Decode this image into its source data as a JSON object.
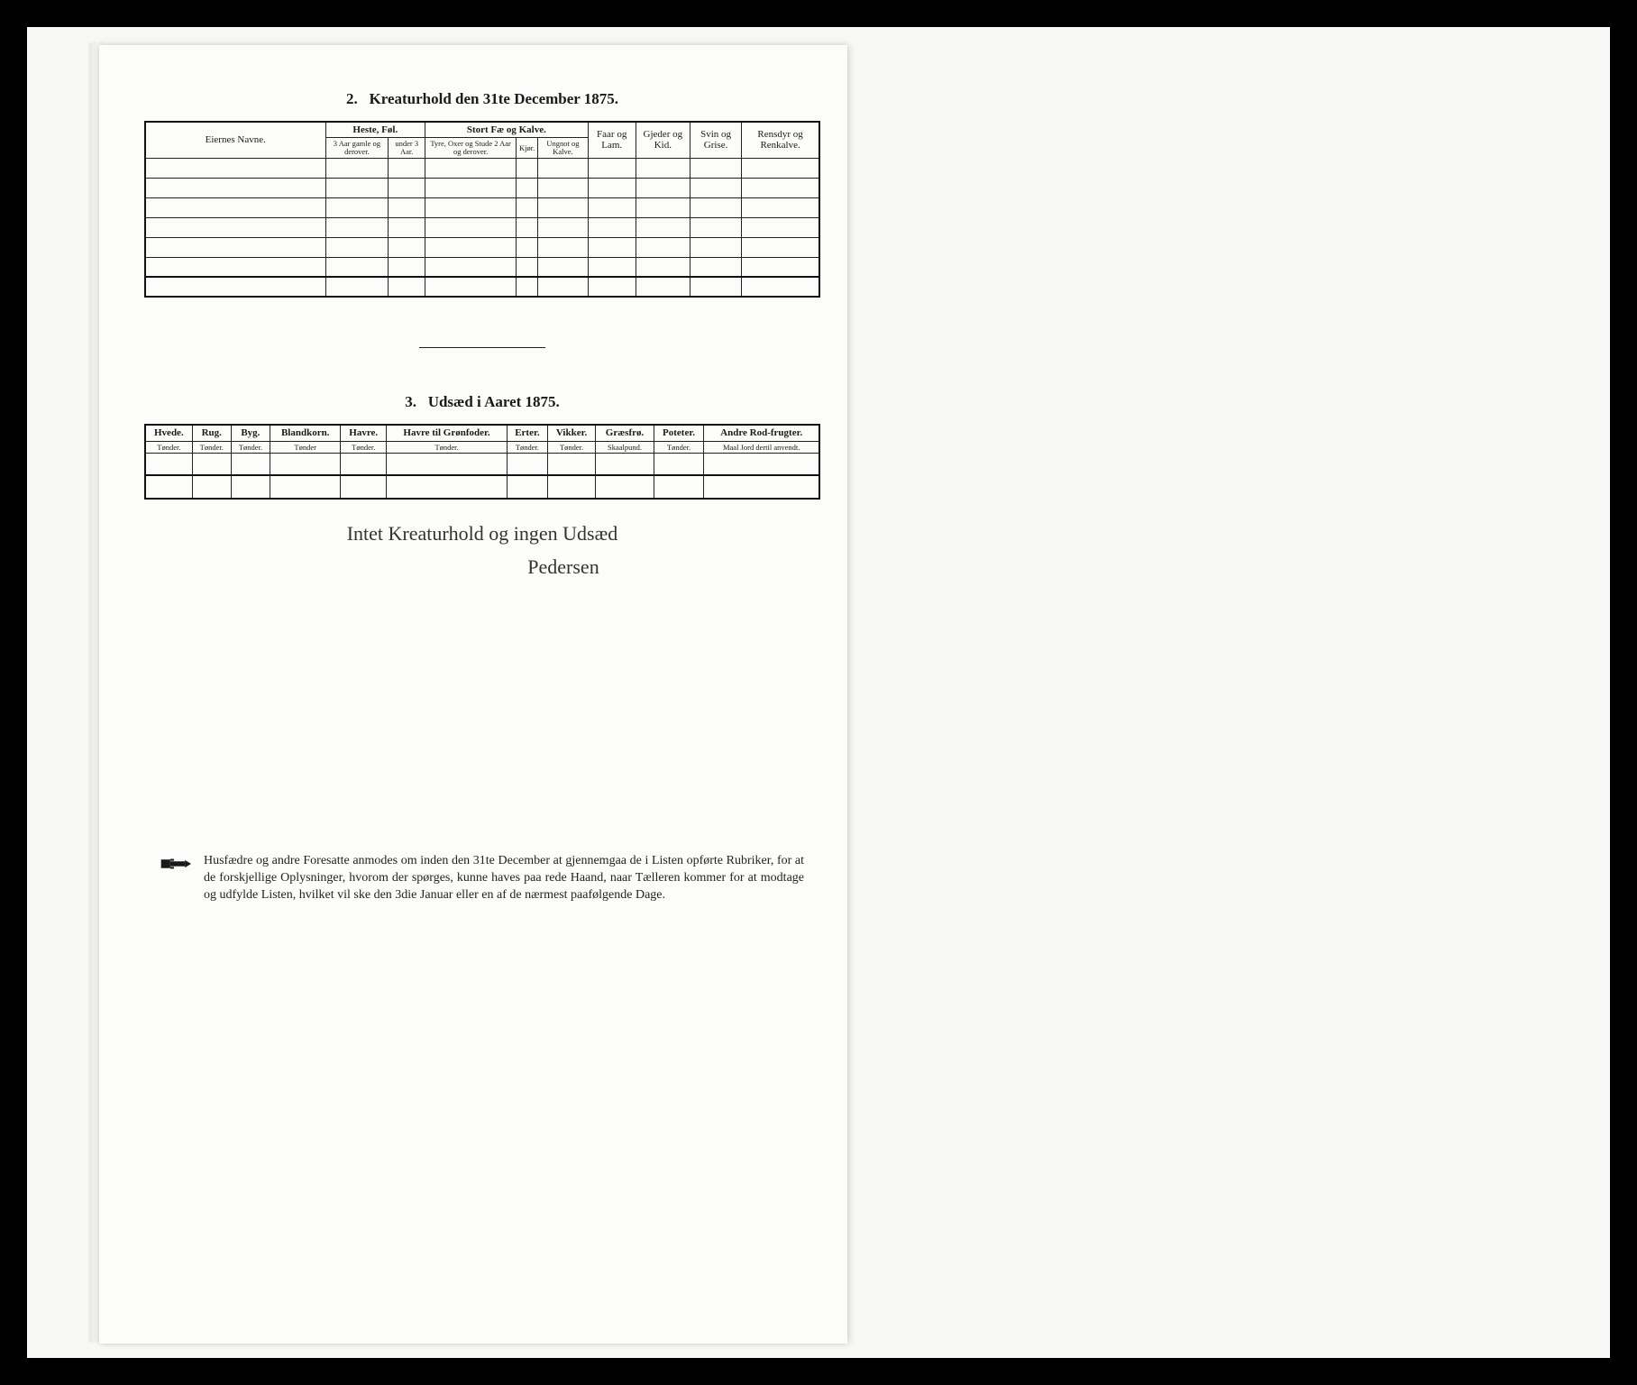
{
  "page": {
    "background_color": "#000000",
    "scan_background": "#f8f8f6",
    "paper_color": "#fcfcfa",
    "text_color": "#1a1a1a",
    "rule_color": "#222222"
  },
  "section2": {
    "number": "2.",
    "title": "Kreaturhold den 31te December 1875.",
    "owners_label": "Eiernes Navne.",
    "group_heste": "Heste, Føl.",
    "group_storfe": "Stort Fæ og Kalve.",
    "heste_sub1": "3 Aar gamle og derover.",
    "heste_sub2": "under 3 Aar.",
    "storfe_sub1": "Tyre, Oxer og Stude 2 Aar og derover.",
    "storfe_sub2": "Kjør.",
    "storfe_sub3": "Ungnot og Kalve.",
    "col_faar": "Faar og Lam.",
    "col_gjeder": "Gjeder og Kid.",
    "col_svin": "Svin og Grise.",
    "col_rensdyr": "Rensdyr og Renkalve.",
    "data_rows": 6
  },
  "section3": {
    "number": "3.",
    "title": "Udsæd i Aaret 1875.",
    "columns": [
      {
        "label": "Hvede.",
        "unit": "Tønder."
      },
      {
        "label": "Rug.",
        "unit": "Tønder."
      },
      {
        "label": "Byg.",
        "unit": "Tønder."
      },
      {
        "label": "Blandkorn.",
        "unit": "Tønder"
      },
      {
        "label": "Havre.",
        "unit": "Tønder."
      },
      {
        "label": "Havre til Grønfoder.",
        "unit": "Tønder."
      },
      {
        "label": "Erter.",
        "unit": "Tønder."
      },
      {
        "label": "Vikker.",
        "unit": "Tønder."
      },
      {
        "label": "Græsfrø.",
        "unit": "Skaalpund."
      },
      {
        "label": "Poteter.",
        "unit": "Tønder."
      },
      {
        "label": "Andre Rod-frugter.",
        "unit": "Maal Jord dertil anvendt."
      }
    ],
    "data_rows": 1
  },
  "handwriting": {
    "line": "Intet Kreaturhold og ingen Udsæd",
    "signature": "Pedersen"
  },
  "footnote": {
    "text": "Husfædre og andre Foresatte anmodes om inden den 31te December at gjennemgaa de i Listen opførte Rubriker, for at de forskjellige Oplysninger, hvorom der spørges, kunne haves paa rede Haand, naar Tælleren kommer for at modtage og udfylde Listen, hvilket vil ske den 3die Januar eller en af de nærmest paafølgende Dage."
  }
}
